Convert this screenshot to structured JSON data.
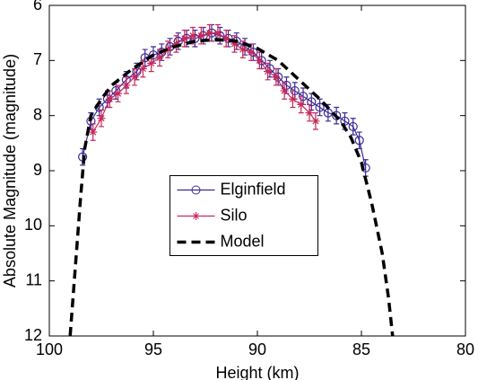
{
  "chart_data": {
    "type": "line",
    "x_label": "Height (km)",
    "y_label": "Absolute Magnitude (magnitude)",
    "xlim": [
      100,
      80
    ],
    "xticks": [
      100,
      95,
      90,
      85,
      80
    ],
    "ylim": [
      12,
      6
    ],
    "yticks": [
      6,
      7,
      8,
      9,
      10,
      11,
      12
    ],
    "legend": "center",
    "series": [
      {
        "name": "Elginfield",
        "color": "#3b2a96",
        "marker": "circle",
        "line": "solid",
        "x": [
          98.4,
          98.0,
          97.6,
          97.2,
          96.8,
          96.3,
          95.8,
          95.4,
          95.0,
          94.6,
          94.2,
          93.8,
          93.4,
          93.0,
          92.6,
          92.2,
          91.8,
          91.4,
          91.0,
          90.6,
          90.2,
          89.8,
          89.4,
          89.0,
          88.6,
          88.2,
          87.8,
          87.4,
          87.0,
          86.6,
          86.2,
          85.8,
          85.4,
          85.1,
          84.8
        ],
        "values": [
          8.75,
          8.1,
          7.85,
          7.7,
          7.55,
          7.35,
          7.2,
          6.95,
          6.9,
          6.85,
          6.75,
          6.65,
          6.6,
          6.6,
          6.55,
          6.5,
          6.55,
          6.6,
          6.65,
          6.75,
          6.85,
          7.0,
          7.15,
          7.3,
          7.45,
          7.55,
          7.65,
          7.75,
          7.85,
          7.95,
          8.0,
          8.1,
          8.2,
          8.45,
          8.95
        ],
        "errors": [
          0.15,
          0.15,
          0.15,
          0.15,
          0.15,
          0.15,
          0.15,
          0.15,
          0.15,
          0.15,
          0.15,
          0.15,
          0.15,
          0.15,
          0.15,
          0.15,
          0.15,
          0.15,
          0.15,
          0.15,
          0.15,
          0.15,
          0.15,
          0.15,
          0.15,
          0.15,
          0.15,
          0.15,
          0.15,
          0.15,
          0.15,
          0.15,
          0.15,
          0.15,
          0.15
        ]
      },
      {
        "name": "Silo",
        "color": "#c8285a",
        "marker": "star",
        "line": "solid",
        "x": [
          97.9,
          97.5,
          97.1,
          96.7,
          96.3,
          95.9,
          95.5,
          95.1,
          94.7,
          94.3,
          93.9,
          93.5,
          93.1,
          92.7,
          92.3,
          91.9,
          91.5,
          91.1,
          90.7,
          90.3,
          89.9,
          89.5,
          89.1,
          88.7,
          88.3,
          87.9,
          87.5,
          87.2
        ],
        "values": [
          8.3,
          8.05,
          7.7,
          7.6,
          7.45,
          7.3,
          7.15,
          7.05,
          6.95,
          6.8,
          6.7,
          6.6,
          6.55,
          6.55,
          6.5,
          6.5,
          6.6,
          6.7,
          6.8,
          6.85,
          7.0,
          7.2,
          7.3,
          7.55,
          7.7,
          7.8,
          7.95,
          8.1
        ],
        "errors": [
          0.15,
          0.15,
          0.15,
          0.15,
          0.15,
          0.15,
          0.15,
          0.15,
          0.15,
          0.15,
          0.15,
          0.15,
          0.15,
          0.15,
          0.15,
          0.15,
          0.15,
          0.15,
          0.15,
          0.15,
          0.15,
          0.15,
          0.15,
          0.15,
          0.15,
          0.15,
          0.15,
          0.15
        ]
      },
      {
        "name": "Model",
        "color": "#000000",
        "marker": "none",
        "line": "dashed",
        "x": [
          99.0,
          98.9,
          98.7,
          98.5,
          98.3,
          98.0,
          97.5,
          97.0,
          96.0,
          95.0,
          94.0,
          93.0,
          92.0,
          91.0,
          90.0,
          89.0,
          88.0,
          87.0,
          86.0,
          85.5,
          85.0,
          84.5,
          84.0,
          83.7,
          83.5
        ],
        "values": [
          12,
          11.5,
          10.5,
          9.5,
          8.6,
          8.0,
          7.7,
          7.45,
          7.15,
          6.9,
          6.75,
          6.65,
          6.62,
          6.65,
          6.78,
          7.0,
          7.35,
          7.7,
          8.1,
          8.4,
          8.85,
          9.6,
          10.5,
          11.3,
          12
        ]
      }
    ]
  }
}
